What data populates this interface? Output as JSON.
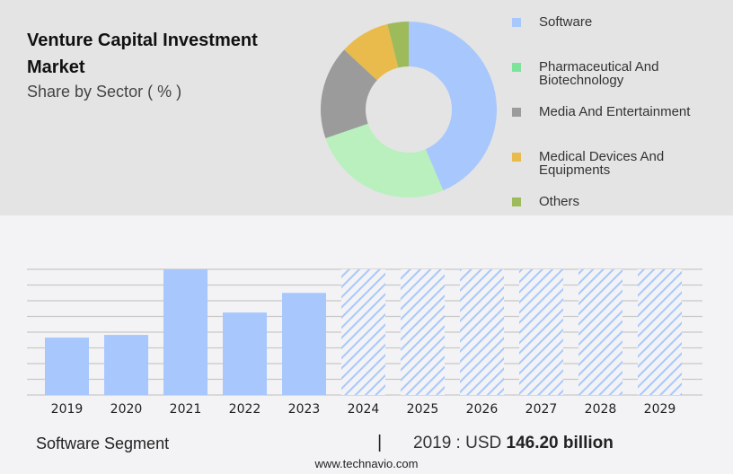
{
  "header": {
    "title": "Venture Capital Investment Market",
    "subtitle": "Share by Sector ( % )"
  },
  "chart_data": [
    {
      "type": "pie",
      "donut": true,
      "title": "Venture Capital Investment Market",
      "subtitle": "Share by Sector ( % )",
      "legend_position": "right",
      "slices": [
        {
          "name": "Software",
          "value": 43.6,
          "color": "#a8c8fd"
        },
        {
          "name": "Pharmaceutical And Biotechnology",
          "value": 26.1,
          "color": "#b9f0bd"
        },
        {
          "name": "Media And Entertainment",
          "value": 17.2,
          "color": "#9b9b9b"
        },
        {
          "name": "Medical Devices And Equipments",
          "value": 9.2,
          "color": "#e9bb4d"
        },
        {
          "name": "Others",
          "value": 3.9,
          "color": "#9ebb5c"
        }
      ],
      "legend_colors": [
        "#a8c8fd",
        "#7de39a",
        "#9b9b9b",
        "#e9bb4d",
        "#9ebb5c"
      ]
    },
    {
      "type": "bar",
      "categories": [
        "2019",
        "2020",
        "2021",
        "2022",
        "2023",
        "2024",
        "2025",
        "2026",
        "2027",
        "2028",
        "2029"
      ],
      "values": [
        146.2,
        153,
        320,
        210,
        260,
        null,
        null,
        null,
        null,
        null,
        null
      ],
      "forecast_from": "2024",
      "ylim": [
        0,
        320
      ],
      "grid": true,
      "color": "#a8c8fd"
    }
  ],
  "footer": {
    "segment": "Software Segment",
    "separator": "|",
    "value_prefix": "2019 : USD",
    "value": "146.20 billion",
    "site": "www.technavio.com"
  }
}
